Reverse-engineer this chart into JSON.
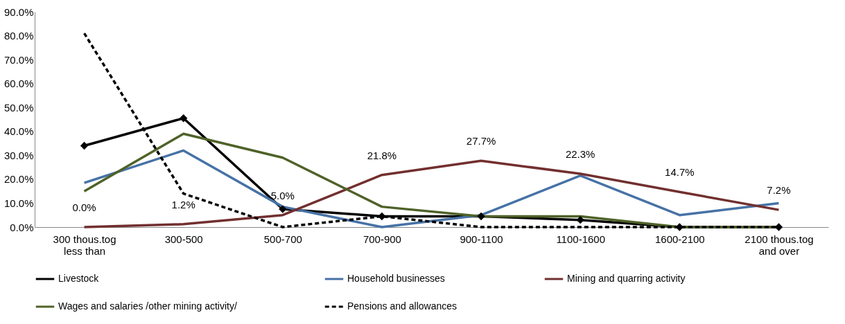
{
  "chart_data": {
    "type": "line",
    "categories": [
      "300 thous.tog\nless than",
      "300-500",
      "500-700",
      "700-900",
      "900-1100",
      "1100-1600",
      "1600-2100",
      "2100 thous.tog\nand over"
    ],
    "ylim": [
      0,
      90
    ],
    "yticks": [
      {
        "value": 0,
        "label": "0.0%"
      },
      {
        "value": 10,
        "label": "10.0%"
      },
      {
        "value": 20,
        "label": "20.0%"
      },
      {
        "value": 30,
        "label": "30.0%"
      },
      {
        "value": 40,
        "label": "40.0%"
      },
      {
        "value": 50,
        "label": "50.0%"
      },
      {
        "value": 60,
        "label": "60.0%"
      },
      {
        "value": 70,
        "label": "70.0%"
      },
      {
        "value": 80,
        "label": "80.0%"
      },
      {
        "value": 90,
        "label": "90.0%"
      }
    ],
    "grid": false,
    "legend": "bottom",
    "series": [
      {
        "name": "Livestock",
        "color": "#000000",
        "marker": "diamond",
        "line_style": "solid",
        "values": [
          34,
          45.5,
          7.5,
          4.5,
          4.5,
          3,
          0,
          0
        ]
      },
      {
        "name": "Household businesses",
        "color": "#4672a6",
        "marker": "none",
        "line_style": "solid",
        "values": [
          18.5,
          32,
          8.5,
          0,
          5,
          21.5,
          5,
          10
        ]
      },
      {
        "name": "Mining and quarring activity",
        "color": "#722f2f",
        "marker": "none",
        "line_style": "solid",
        "values": [
          0,
          1.2,
          5.0,
          21.8,
          27.7,
          22.3,
          14.7,
          7.2
        ],
        "value_labels": [
          "0.0%",
          "1.2%",
          "5.0%",
          "21.8%",
          "27.7%",
          "22.3%",
          "14.7%",
          "7.2%"
        ]
      },
      {
        "name": "Wages and salaries /other mining activity/",
        "color": "#4f6228",
        "marker": "none",
        "line_style": "solid",
        "values": [
          15,
          39,
          29,
          8.5,
          4.5,
          4.5,
          0,
          0
        ]
      },
      {
        "name": "Pensions and allowances",
        "color": "#000000",
        "marker": "none",
        "line_style": "dashed",
        "values": [
          81,
          14,
          0,
          4.5,
          0,
          0,
          0,
          0
        ]
      }
    ]
  }
}
